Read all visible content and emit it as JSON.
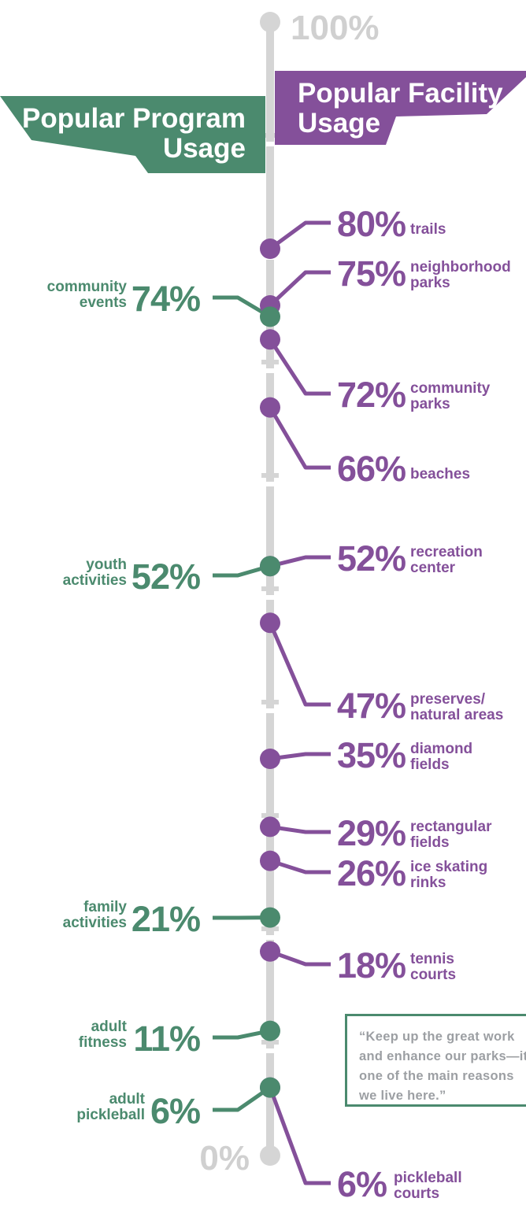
{
  "chart_data": {
    "type": "scatter",
    "axis": {
      "top_label": "100%",
      "bottom_label": "0%",
      "ylim": [
        0,
        100
      ]
    },
    "colors": {
      "program": "#4b8a6e",
      "facility": "#84509a",
      "axis": "#d5d5d5",
      "axis_label": "#d0d0d0",
      "quote": "#9c9fa3"
    },
    "program_series": {
      "name": "Popular Program Usage",
      "name_lines": [
        "Popular Program",
        "Usage"
      ],
      "points": [
        {
          "value": 74,
          "label": "74%",
          "lines": [
            "community",
            "events"
          ]
        },
        {
          "value": 52,
          "label": "52%",
          "lines": [
            "youth",
            "activities"
          ]
        },
        {
          "value": 21,
          "label": "21%",
          "lines": [
            "family",
            "activities"
          ]
        },
        {
          "value": 11,
          "label": "11%",
          "lines": [
            "adult",
            "fitness"
          ]
        },
        {
          "value": 6,
          "label": "6%",
          "lines": [
            "adult",
            "pickleball"
          ]
        }
      ]
    },
    "facility_series": {
      "name": "Popular Facility Usage",
      "name_lines": [
        "Popular Facility",
        "Usage"
      ],
      "points": [
        {
          "value": 80,
          "label": "80%",
          "lines": [
            "trails"
          ]
        },
        {
          "value": 75,
          "label": "75%",
          "lines": [
            "neighborhood",
            "parks"
          ]
        },
        {
          "value": 72,
          "label": "72%",
          "lines": [
            "community",
            "parks"
          ]
        },
        {
          "value": 66,
          "label": "66%",
          "lines": [
            "beaches"
          ]
        },
        {
          "value": 52,
          "label": "52%",
          "lines": [
            "recreation",
            "center"
          ]
        },
        {
          "value": 47,
          "label": "47%",
          "lines": [
            "preserves/",
            "natural areas"
          ]
        },
        {
          "value": 35,
          "label": "35%",
          "lines": [
            "diamond",
            "fields"
          ]
        },
        {
          "value": 29,
          "label": "29%",
          "lines": [
            "rectangular",
            "fields"
          ]
        },
        {
          "value": 26,
          "label": "26%",
          "lines": [
            "ice skating",
            "rinks"
          ]
        },
        {
          "value": 18,
          "label": "18%",
          "lines": [
            "tennis",
            "courts"
          ]
        },
        {
          "value": 6,
          "label": "6%",
          "lines": [
            "pickleball",
            "courts"
          ]
        }
      ]
    }
  },
  "quote": {
    "text": "“Keep up the great work\nand enhance our parks—it's\none of the main reasons\nwe live here.”"
  }
}
